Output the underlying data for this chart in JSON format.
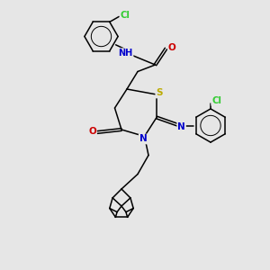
{
  "bg_color": "#e6e6e6",
  "bond_color": "#000000",
  "atom_colors": {
    "N": "#0000cc",
    "O": "#cc0000",
    "S": "#bbaa00",
    "Cl": "#33cc33",
    "C": "#000000",
    "H": "#606060"
  }
}
